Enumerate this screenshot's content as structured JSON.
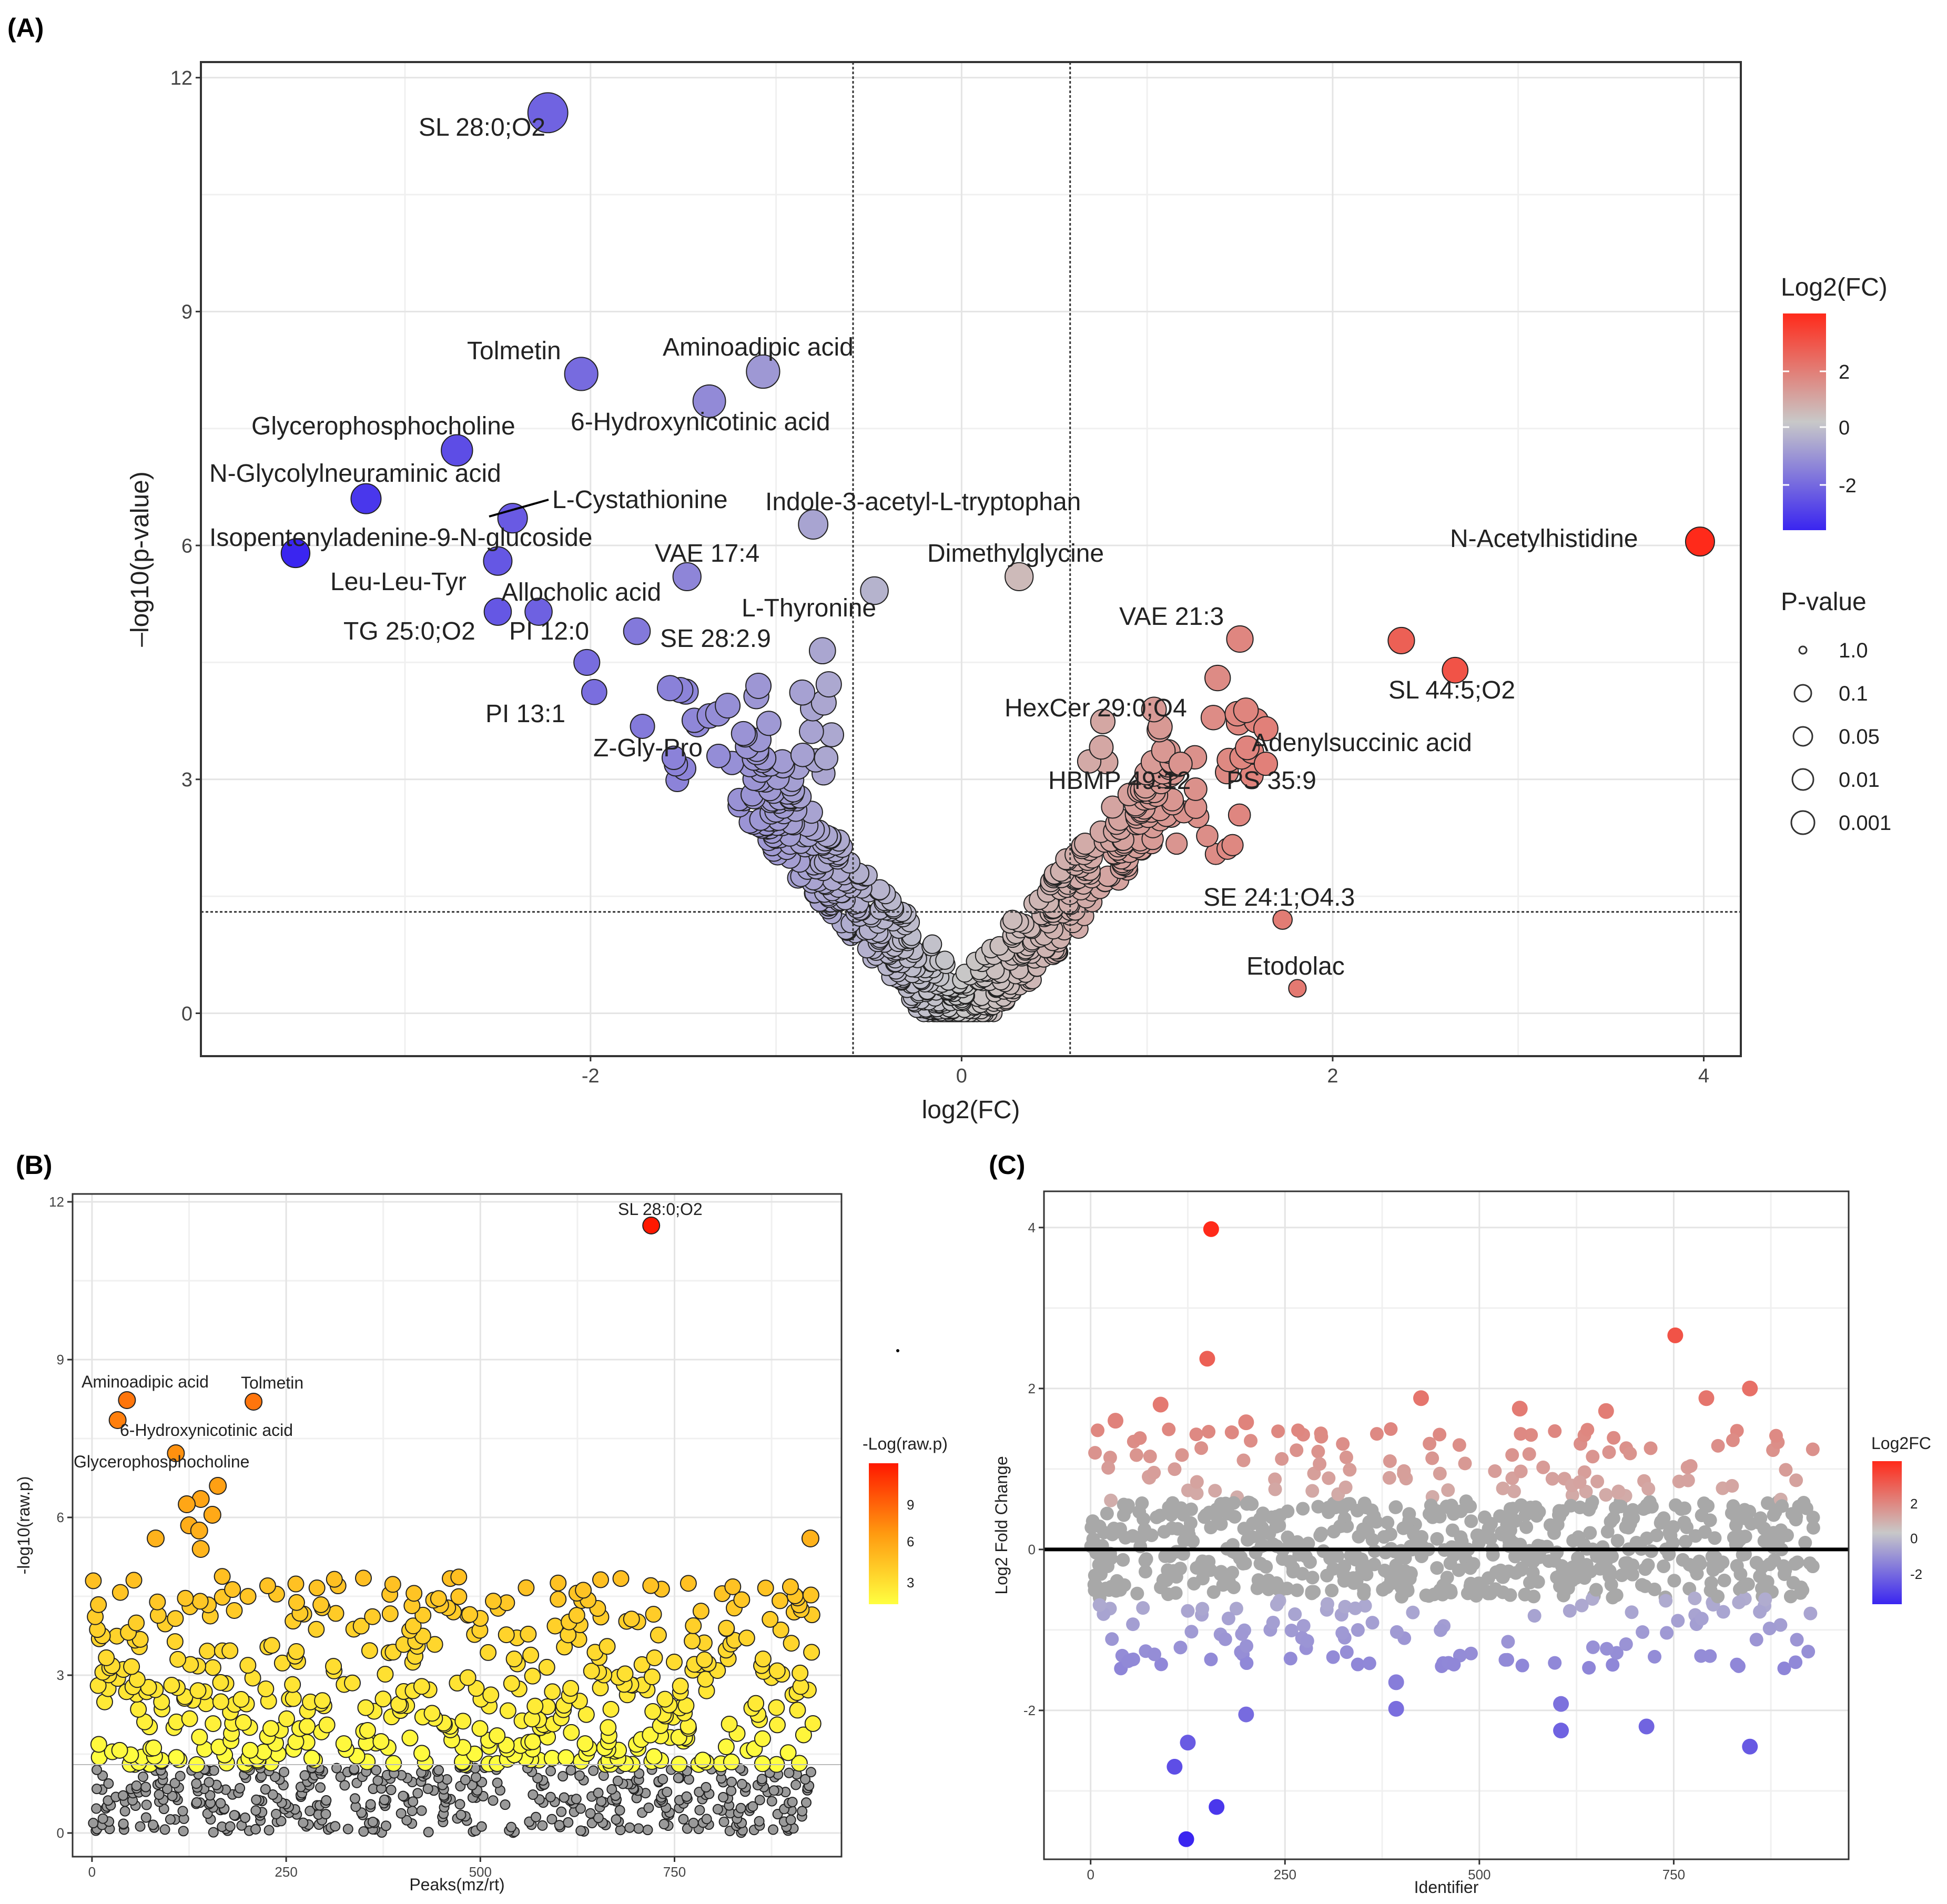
{
  "panels": {
    "a": {
      "label": "(A)"
    },
    "b": {
      "label": "(B)"
    },
    "c": {
      "label": "(C)"
    }
  },
  "chart_data": [
    {
      "id": "volcano",
      "type": "scatter",
      "title": "",
      "xlabel": "log2(FC)",
      "ylabel": "–log10(p-value)",
      "xlim": [
        -4.1,
        4.2
      ],
      "ylim": [
        -0.55,
        12.2
      ],
      "xticks": [
        -2,
        0,
        2,
        4
      ],
      "yticks": [
        0,
        3,
        6,
        9,
        12
      ],
      "xtick_labels": [
        "-2",
        "0",
        "2",
        "4"
      ],
      "ytick_labels": [
        "0",
        "3",
        "6",
        "9",
        "12"
      ],
      "thresholds": {
        "fc_left": -0.585,
        "fc_right": 0.585,
        "p_line": 1.3
      },
      "color_legend": {
        "title": "Log2(FC)",
        "ticks": [
          "2",
          "0",
          "-2"
        ],
        "colors": [
          "#ff2a1a",
          "#c8c8c8",
          "#3a25f0"
        ]
      },
      "size_legend": {
        "title": "P-value",
        "labels": [
          "1.0",
          "0.1",
          "0.05",
          "0.01",
          "0.001"
        ]
      },
      "points": [
        {
          "name": "SL 28:0;O2",
          "x": -2.23,
          "y": 11.55
        },
        {
          "name": "Tolmetin",
          "x": -2.05,
          "y": 8.2
        },
        {
          "name": "Aminoadipic acid",
          "x": -1.07,
          "y": 8.23
        },
        {
          "name": "6-Hydroxynicotinic acid",
          "x": -1.36,
          "y": 7.85
        },
        {
          "name": "Glycerophosphocholine",
          "x": -2.72,
          "y": 7.22
        },
        {
          "name": "N-Glycolylneuraminic acid",
          "x": -3.21,
          "y": 6.6
        },
        {
          "name": "L-Cystathionine",
          "x": -2.42,
          "y": 6.35
        },
        {
          "name": "Indole-3-acetyl-L-tryptophan",
          "x": -0.8,
          "y": 6.27
        },
        {
          "name": "Isopentenyladenine-9-N-glucoside",
          "x": -3.59,
          "y": 5.9
        },
        {
          "name": "",
          "x": -2.5,
          "y": 5.8
        },
        {
          "name": "VAE 17:4",
          "x": -1.48,
          "y": 5.6
        },
        {
          "name": "Dimethylglycine",
          "x": 0.31,
          "y": 5.6
        },
        {
          "name": "N-Acetylhistidine",
          "x": 3.98,
          "y": 6.05
        },
        {
          "name": "L-Thyronine",
          "x": -0.47,
          "y": 5.42
        },
        {
          "name": "Leu-Leu-Tyr",
          "x": -2.5,
          "y": 5.15
        },
        {
          "name": "Allocholic acid",
          "x": -2.28,
          "y": 5.15
        },
        {
          "name": "TG 25:0;O2",
          "x": -1.75,
          "y": 4.9
        },
        {
          "name": "PI 12:0",
          "x": -2.02,
          "y": 4.5
        },
        {
          "name": "PI 13:1",
          "x": -1.98,
          "y": 4.12
        },
        {
          "name": "SE 28:2.9",
          "x": -0.75,
          "y": 4.65
        },
        {
          "name": "Z-Gly-Pro",
          "x": -1.72,
          "y": 3.68
        },
        {
          "name": "",
          "x": -1.31,
          "y": 3.3
        },
        {
          "name": "VAE 21:3",
          "x": 1.5,
          "y": 4.8
        },
        {
          "name": "SL 44:5;O2",
          "x": 2.66,
          "y": 4.4
        },
        {
          "name": "",
          "x": 2.37,
          "y": 4.78
        },
        {
          "name": "HexCer 29:0;O4",
          "x": 1.38,
          "y": 4.3
        },
        {
          "name": "Adenylsuccinic acid",
          "x": 1.64,
          "y": 3.65
        },
        {
          "name": "HBMP 49:12",
          "x": 1.18,
          "y": 3.2
        },
        {
          "name": "PS 35:9",
          "x": 1.64,
          "y": 3.2
        },
        {
          "name": "SE 24:1;O4.3",
          "x": 1.73,
          "y": 1.2
        },
        {
          "name": "Etodolac",
          "x": 1.81,
          "y": 0.32
        }
      ]
    },
    {
      "id": "manhattan",
      "type": "scatter",
      "xlabel": "Peaks(mz/rt)",
      "ylabel": "-log10(raw.p)",
      "xlim": [
        -25,
        965
      ],
      "ylim": [
        -0.45,
        12.15
      ],
      "xticks": [
        0,
        250,
        500,
        750
      ],
      "yticks": [
        0,
        3,
        6,
        9,
        12
      ],
      "xtick_labels": [
        "0",
        "250",
        "500",
        "750"
      ],
      "ytick_labels": [
        "0",
        "3",
        "6",
        "9",
        "12"
      ],
      "color_legend": {
        "title": "-Log(raw.p)",
        "ticks": [
          "9",
          "6",
          "3"
        ],
        "colors": [
          "#ff1800",
          "#ff9a10",
          "#ffff40"
        ]
      },
      "points": [
        {
          "name": "SL 28:0;O2",
          "x": 720,
          "y": 11.55
        },
        {
          "name": "Aminoadipic acid",
          "x": 45,
          "y": 8.23
        },
        {
          "name": "Tolmetin",
          "x": 208,
          "y": 8.2
        },
        {
          "name": "6-Hydroxynicotinic acid",
          "x": 33,
          "y": 7.85
        },
        {
          "name": "Glycerophosphocholine",
          "x": 108,
          "y": 7.22
        },
        {
          "name": "",
          "x": 162,
          "y": 6.6
        },
        {
          "name": "",
          "x": 140,
          "y": 6.35
        },
        {
          "name": "",
          "x": 122,
          "y": 6.25
        },
        {
          "name": "",
          "x": 155,
          "y": 6.05
        },
        {
          "name": "",
          "x": 125,
          "y": 5.85
        },
        {
          "name": "",
          "x": 138,
          "y": 5.75
        },
        {
          "name": "",
          "x": 82,
          "y": 5.6
        },
        {
          "name": "",
          "x": 925,
          "y": 5.6
        },
        {
          "name": "",
          "x": 140,
          "y": 5.4
        }
      ]
    },
    {
      "id": "foldchange",
      "type": "scatter",
      "xlabel": "Identifier",
      "ylabel": "Log2 Fold Change",
      "xlim": [
        -60,
        975
      ],
      "ylim": [
        -3.85,
        4.45
      ],
      "xticks": [
        0,
        250,
        500,
        750
      ],
      "yticks": [
        -2,
        0,
        2,
        4
      ],
      "xtick_labels": [
        "0",
        "250",
        "500",
        "750"
      ],
      "ytick_labels": [
        "-2",
        "0",
        "2",
        "4"
      ],
      "color_legend": {
        "title": "Log2FC",
        "ticks": [
          "2",
          "0",
          "-2"
        ],
        "colors": [
          "#ff2a1a",
          "#c8c8c8",
          "#3a25f0"
        ]
      },
      "points": [
        {
          "x": 155,
          "y": 3.98
        },
        {
          "x": 150,
          "y": 2.37
        },
        {
          "x": 752,
          "y": 2.66
        },
        {
          "x": 848,
          "y": 2.0
        },
        {
          "x": 792,
          "y": 1.88
        },
        {
          "x": 425,
          "y": 1.88
        },
        {
          "x": 90,
          "y": 1.8
        },
        {
          "x": 552,
          "y": 1.75
        },
        {
          "x": 663,
          "y": 1.72
        },
        {
          "x": 32,
          "y": 1.6
        },
        {
          "x": 200,
          "y": 1.58
        },
        {
          "x": 125,
          "y": -2.4
        },
        {
          "x": 108,
          "y": -2.7
        },
        {
          "x": 162,
          "y": -3.2
        },
        {
          "x": 123,
          "y": -3.6
        },
        {
          "x": 715,
          "y": -2.2
        },
        {
          "x": 848,
          "y": -2.45
        },
        {
          "x": 605,
          "y": -2.25
        },
        {
          "x": 605,
          "y": -1.92
        },
        {
          "x": 200,
          "y": -2.05
        },
        {
          "x": 393,
          "y": -1.98
        },
        {
          "x": 393,
          "y": -1.65
        }
      ]
    }
  ]
}
